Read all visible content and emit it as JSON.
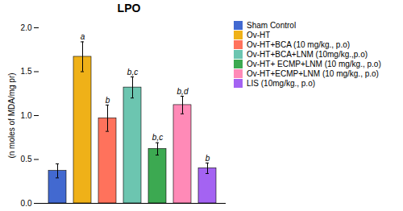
{
  "chart_data": {
    "type": "bar",
    "title": "LPO",
    "ylabel": "(n moles of MDA/mg pr)",
    "categories": [
      "Sham Control",
      "Ov-HT",
      "Ov-HT+BCA (10 mg/kg., p.o)",
      "Ov-HT+BCA+LNM (10mg/kg.,p.o)",
      "Ov-HT+ ECMP+LNM (10 mg/kg., p.o)",
      "Ov-HT+ECMP+LNM (10 mg/kg., p.o)",
      "LIS (10mg/kg., p.o)"
    ],
    "values": [
      0.37,
      1.67,
      0.97,
      1.32,
      0.62,
      1.12,
      0.4
    ],
    "errors": [
      0.08,
      0.17,
      0.15,
      0.12,
      0.07,
      0.1,
      0.06
    ],
    "significance": [
      null,
      "a",
      "b",
      "b,c",
      "b,c",
      "b,d",
      "b"
    ],
    "ylim": [
      0,
      2.0
    ],
    "yticks": [
      {
        "value": 0.0,
        "label": "0.0"
      },
      {
        "value": 0.5,
        "label": "0.5"
      },
      {
        "value": 1.0,
        "label": "1.0"
      },
      {
        "value": 1.5,
        "label": "1.5"
      },
      {
        "value": 2.0,
        "label": "2.0"
      }
    ],
    "legend": "right",
    "tick_labels": "y",
    "grid": false
  }
}
